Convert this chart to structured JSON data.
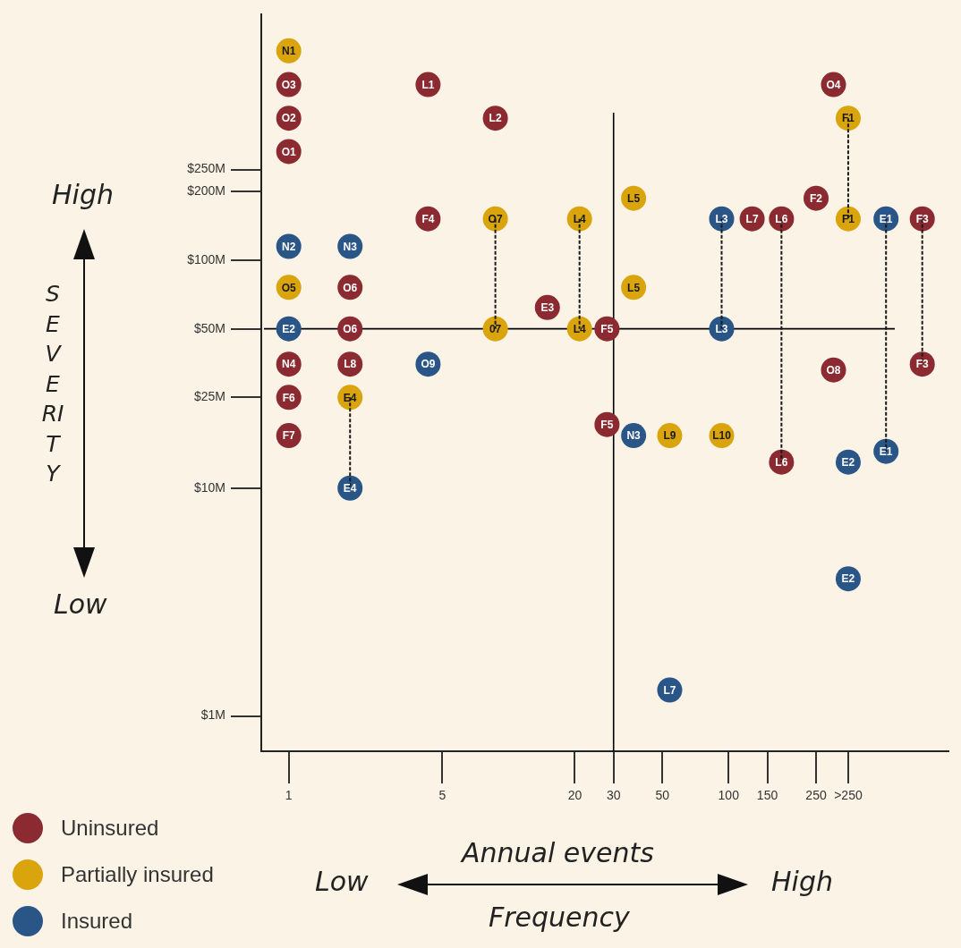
{
  "chart_data": {
    "type": "scatter",
    "xlabel": "Annual events",
    "annotations": [
      "High",
      "SEVERITY",
      "Low",
      "Low",
      "High",
      "Frequency",
      {
        "text": "O3",
        "x": 1,
        "y": 590
      },
      {
        "text": "O2",
        "x": 1,
        "y": 420
      },
      {
        "text": "O1",
        "x": 1,
        "y": 300
      },
      {
        "text": "L1",
        "x": 4.3,
        "y": 590
      },
      {
        "text": "L2",
        "x": 8.7,
        "y": 420
      },
      {
        "text": "O4",
        "x": 300,
        "y": 590
      },
      {
        "text": "F4",
        "x": 4.3,
        "y": 152
      },
      {
        "text": "L7",
        "x": 128,
        "y": 152
      },
      {
        "text": "L6",
        "x": 174,
        "y": 152
      },
      {
        "text": "F2",
        "x": 250,
        "y": 187
      },
      {
        "text": "F3",
        "x": 760,
        "y": 152
      },
      {
        "text": "O6",
        "x": 1.9,
        "y": 76
      },
      {
        "text": "E3",
        "x": 15,
        "y": 62
      },
      {
        "text": "O6",
        "x": 1.9,
        "y": 50
      },
      {
        "text": "F5",
        "x": 28,
        "y": 50
      },
      {
        "text": "N4",
        "x": 1,
        "y": 35
      },
      {
        "text": "L8",
        "x": 1.9,
        "y": 35
      },
      {
        "text": "F3",
        "x": 760,
        "y": 35
      },
      {
        "text": "O8",
        "x": 300,
        "y": 33
      },
      {
        "text": "F6",
        "x": 1,
        "y": 25
      },
      {
        "text": "F5",
        "x": 28,
        "y": 19
      },
      {
        "text": "F7",
        "x": 1,
        "y": 17
      },
      {
        "text": "L6",
        "x": 174,
        "y": 13
      },
      {
        "text": "N1",
        "x": 1,
        "y": 830
      },
      {
        "text": "F1",
        "x": 350,
        "y": 420
      },
      {
        "text": "L5",
        "x": 37,
        "y": 187
      },
      {
        "text": "O7",
        "x": 8.7,
        "y": 152
      },
      {
        "text": "L4",
        "x": 21,
        "y": 152
      },
      {
        "text": "F1",
        "x": 350,
        "y": 152
      },
      {
        "text": "O5",
        "x": 1,
        "y": 76
      },
      {
        "text": "L5",
        "x": 37,
        "y": 76
      },
      {
        "text": "07",
        "x": 8.7,
        "y": 50
      },
      {
        "text": "L4",
        "x": 21,
        "y": 50
      },
      {
        "text": "E4",
        "x": 1.9,
        "y": 25
      },
      {
        "text": "L9",
        "x": 54,
        "y": 17
      },
      {
        "text": "L10",
        "x": 93,
        "y": 17
      },
      {
        "text": "N2",
        "x": 1,
        "y": 115
      },
      {
        "text": "N3",
        "x": 1.9,
        "y": 115
      },
      {
        "text": "L3",
        "x": 93,
        "y": 152
      },
      {
        "text": "E1",
        "x": 520,
        "y": 152
      },
      {
        "text": "E2",
        "x": 1,
        "y": 50
      },
      {
        "text": "L3",
        "x": 93,
        "y": 50
      },
      {
        "text": "O9",
        "x": 4.3,
        "y": 35
      },
      {
        "text": "N3",
        "x": 37,
        "y": 17
      },
      {
        "text": "E1",
        "x": 520,
        "y": 14.5
      },
      {
        "text": "E2",
        "x": 350,
        "y": 13
      },
      {
        "text": "E4",
        "x": 1.9,
        "y": 10
      },
      {
        "text": "E2",
        "x": 350,
        "y": 4
      },
      {
        "text": "L7",
        "x": 54,
        "y": 1.3
      }
    ],
    "xlim": [
      0.75,
      1000
    ],
    "ylim": [
      0.72,
      1200
    ],
    "log": "xy",
    "xticks": [
      1,
      5,
      20,
      30,
      50,
      100,
      150,
      250,
      {
        "value": 350,
        "label": ">250"
      }
    ],
    "yticks": [
      {
        "value": 1,
        "label": "$1M"
      },
      {
        "value": 10,
        "label": "$10M"
      },
      {
        "value": 25,
        "label": "$25M"
      },
      {
        "value": 50,
        "label": "$50M"
      },
      {
        "value": 100,
        "label": "$100M"
      },
      {
        "value": 200,
        "label": "$200M"
      },
      {
        "value": 250,
        "label": "$250M"
      }
    ],
    "legend": "bottom left",
    "ref_lines": [
      {
        "axis": "x",
        "value": 30
      },
      {
        "axis": "y",
        "value": 50
      }
    ],
    "series": [
      {
        "type": "line",
        "color": "#1a1a1a",
        "line_style": "dashed",
        "x": [
          8.7,
          8.7
        ],
        "values": [
          152,
          50
        ]
      },
      {
        "type": "line",
        "color": "#1a1a1a",
        "line_style": "dashed",
        "x": [
          21,
          21
        ],
        "values": [
          152,
          50
        ]
      },
      {
        "type": "line",
        "color": "#1a1a1a",
        "line_style": "dashed",
        "x": [
          93,
          93
        ],
        "values": [
          152,
          50
        ]
      },
      {
        "type": "line",
        "color": "#1a1a1a",
        "line_style": "dashed",
        "x": [
          174,
          174
        ],
        "values": [
          152,
          13
        ]
      },
      {
        "type": "line",
        "color": "#1a1a1a",
        "line_style": "dashed",
        "x": [
          350,
          350
        ],
        "values": [
          420,
          152
        ]
      },
      {
        "type": "line",
        "color": "#1a1a1a",
        "line_style": "dashed",
        "x": [
          520,
          520
        ],
        "values": [
          152,
          14.5
        ]
      },
      {
        "type": "line",
        "color": "#1a1a1a",
        "line_style": "dashed",
        "x": [
          760,
          760
        ],
        "values": [
          152,
          35
        ]
      },
      {
        "type": "line",
        "color": "#1a1a1a",
        "line_style": "dashed",
        "x": [
          1.9,
          1.9
        ],
        "values": [
          25,
          10
        ]
      },
      {
        "name": "Uninsured",
        "color": "#8b2a30",
        "marker": "circle",
        "x": [
          1,
          1,
          1,
          4.3,
          8.7,
          300,
          4.3,
          128,
          174,
          250,
          760,
          1.9,
          15,
          1.9,
          28,
          1,
          1.9,
          760,
          300,
          1,
          28,
          1,
          174
        ],
        "values": [
          590,
          420,
          300,
          590,
          420,
          590,
          152,
          152,
          152,
          187,
          152,
          76,
          62,
          50,
          50,
          35,
          35,
          35,
          33,
          25,
          19,
          17,
          13
        ]
      },
      {
        "name": "Partially insured",
        "color": "#d9a40c",
        "marker": "circle",
        "x": [
          1,
          350,
          37,
          8.7,
          21,
          350,
          1,
          37,
          8.7,
          21,
          1.9,
          54,
          93
        ],
        "values": [
          830,
          420,
          187,
          152,
          152,
          152,
          76,
          76,
          50,
          50,
          25,
          17,
          17
        ]
      },
      {
        "name": "Insured",
        "color": "#2a5587",
        "marker": "circle",
        "x": [
          1,
          1.9,
          93,
          520,
          1,
          93,
          4.3,
          37,
          520,
          350,
          1.9,
          350,
          54
        ],
        "values": [
          115,
          115,
          152,
          152,
          50,
          50,
          35,
          17,
          14.5,
          13,
          10,
          4,
          1.3
        ]
      }
    ]
  }
}
